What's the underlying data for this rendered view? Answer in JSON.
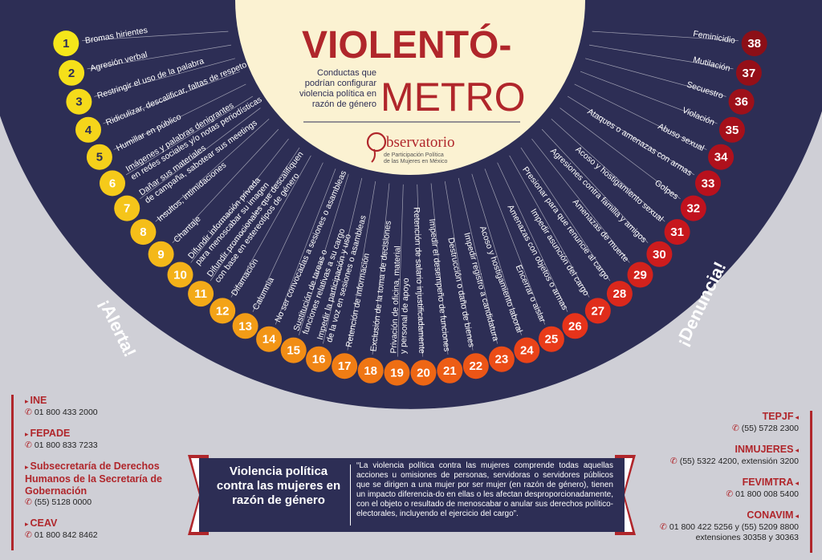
{
  "title": {
    "line1": "VIOLENTÓ-",
    "line2": "METRO",
    "subtitle": [
      "Conductas que",
      "podrían configurar",
      "violencia política en",
      "razón de género"
    ]
  },
  "observatorio": {
    "name": "bservatorio",
    "initial": "O",
    "line1": "de Participación Política",
    "line2": "de las Mujeres en México"
  },
  "alert_label": "¡Alerta!",
  "denuncia_label": "¡Denuncia!",
  "conducts": [
    {
      "n": "1",
      "lines": [
        "Bromas hirientes"
      ]
    },
    {
      "n": "2",
      "lines": [
        "Agresión verbal"
      ]
    },
    {
      "n": "3",
      "lines": [
        "Restringir el uso de la palabra"
      ]
    },
    {
      "n": "4",
      "lines": [
        "Ridiculizar, descalificar, faltas de respeto"
      ]
    },
    {
      "n": "5",
      "lines": [
        "Humillar en público"
      ]
    },
    {
      "n": "6",
      "lines": [
        "Imágenes y palabras denigrantes",
        "en redes sociales y/o notas periodísticas"
      ]
    },
    {
      "n": "7",
      "lines": [
        "Dañar sus materiales",
        "de campaña, sabotear sus meetings"
      ]
    },
    {
      "n": "8",
      "lines": [
        "Insultos, intimidaciones"
      ]
    },
    {
      "n": "9",
      "lines": [
        "Chantaje"
      ]
    },
    {
      "n": "10",
      "lines": [
        "Difundir información privada",
        "para menoscabar su imagen"
      ]
    },
    {
      "n": "11",
      "lines": [
        "Difundir promocionales que descalifiquen",
        "con base en estereotipos de género"
      ]
    },
    {
      "n": "12",
      "lines": [
        "Difamación"
      ]
    },
    {
      "n": "13",
      "lines": [
        "Calumnia"
      ]
    },
    {
      "n": "14",
      "lines": [
        "No ser convocadas a sesiones o asambleas"
      ]
    },
    {
      "n": "15",
      "lines": [
        "Sustitución de tareas o",
        "funciones relativas a su cargo"
      ]
    },
    {
      "n": "16",
      "lines": [
        "Impedir la participación y uso",
        "de la voz en sesiones o asambleas"
      ]
    },
    {
      "n": "17",
      "lines": [
        "Retención de información"
      ]
    },
    {
      "n": "18",
      "lines": [
        "Exclusión de la toma de decisiones"
      ]
    },
    {
      "n": "19",
      "lines": [
        "Privación de oficina, material",
        "y personal de apoyo"
      ]
    },
    {
      "n": "20",
      "lines": [
        "Retención de salario injustificadamente"
      ]
    },
    {
      "n": "21",
      "lines": [
        "Impedir el desempeño de funciones"
      ]
    },
    {
      "n": "22",
      "lines": [
        "Destrucción o daño de bienes"
      ]
    },
    {
      "n": "23",
      "lines": [
        "Impedir registro a candidatura"
      ]
    },
    {
      "n": "24",
      "lines": [
        "Acoso y hostigamiento laboral"
      ]
    },
    {
      "n": "25",
      "lines": [
        "Encerrar o aislar"
      ]
    },
    {
      "n": "26",
      "lines": [
        "Amenazas con objetos o armas"
      ]
    },
    {
      "n": "27",
      "lines": [
        "Impedir asunción del cargo"
      ]
    },
    {
      "n": "28",
      "lines": [
        "Presionar para que renuncie al cargo"
      ]
    },
    {
      "n": "29",
      "lines": [
        "Amenazas de muerte"
      ]
    },
    {
      "n": "30",
      "lines": [
        "Agresiones contra familia y amigos"
      ]
    },
    {
      "n": "31",
      "lines": [
        "Acoso y hostigamiento sexual"
      ]
    },
    {
      "n": "32",
      "lines": [
        "Golpes"
      ]
    },
    {
      "n": "33",
      "lines": [
        "Ataques o amenazas con armas"
      ]
    },
    {
      "n": "34",
      "lines": [
        "Abuso sexual"
      ]
    },
    {
      "n": "35",
      "lines": [
        "Violación"
      ]
    },
    {
      "n": "36",
      "lines": [
        "Secuestro"
      ]
    },
    {
      "n": "37",
      "lines": [
        "Mutilación"
      ]
    },
    {
      "n": "38",
      "lines": [
        "Feminicidio"
      ]
    }
  ],
  "gradient_colors": [
    "#f5e61a",
    "#f5c41a",
    "#f29a16",
    "#ee6a13",
    "#e8351a",
    "#c2121e",
    "#8c0f17"
  ],
  "contacts_left": [
    {
      "name": "INE",
      "phone": "01 800 433 2000"
    },
    {
      "name": "FEPADE",
      "phone": "01 800 833 7233"
    },
    {
      "name": "Subsecretaría de Derechos Humanos de la Secretaría de Gobernación",
      "phone": "(55) 5128 0000"
    },
    {
      "name": "CEAV",
      "phone": "01 800 842 8462"
    }
  ],
  "contacts_right": [
    {
      "name": "TEPJF",
      "phone": "(55) 5728 2300"
    },
    {
      "name": "INMUJERES",
      "phone": "(55) 5322 4200, extensión 3200"
    },
    {
      "name": "FEVIMTRA",
      "phone": "01 800 008 5400"
    },
    {
      "name": "CONAVIM",
      "phone": "01 800 422 5256 y (55) 5209 8800 extensiones 30358 y 30363"
    }
  ],
  "definition": {
    "heading": "Violencia política contra las mujeres en razón de género",
    "text": "“La violencia política contra las mujeres comprende todas aquellas acciones u omisiones de personas, servidoras o servidores públicos que se dirigen a una mujer por ser mujer (en razón de género), tienen un impacto diferencia-do en ellas o les afectan desproporcionadamente, con el objeto o resultado de menoscabar o anular sus derechos político-electorales, incluyendo el ejercicio del cargo”."
  },
  "colors": {
    "navy": "#2d2e55",
    "cream": "#fbf2d2",
    "brand_red": "#b0262b",
    "background": "#cfcfd6"
  }
}
